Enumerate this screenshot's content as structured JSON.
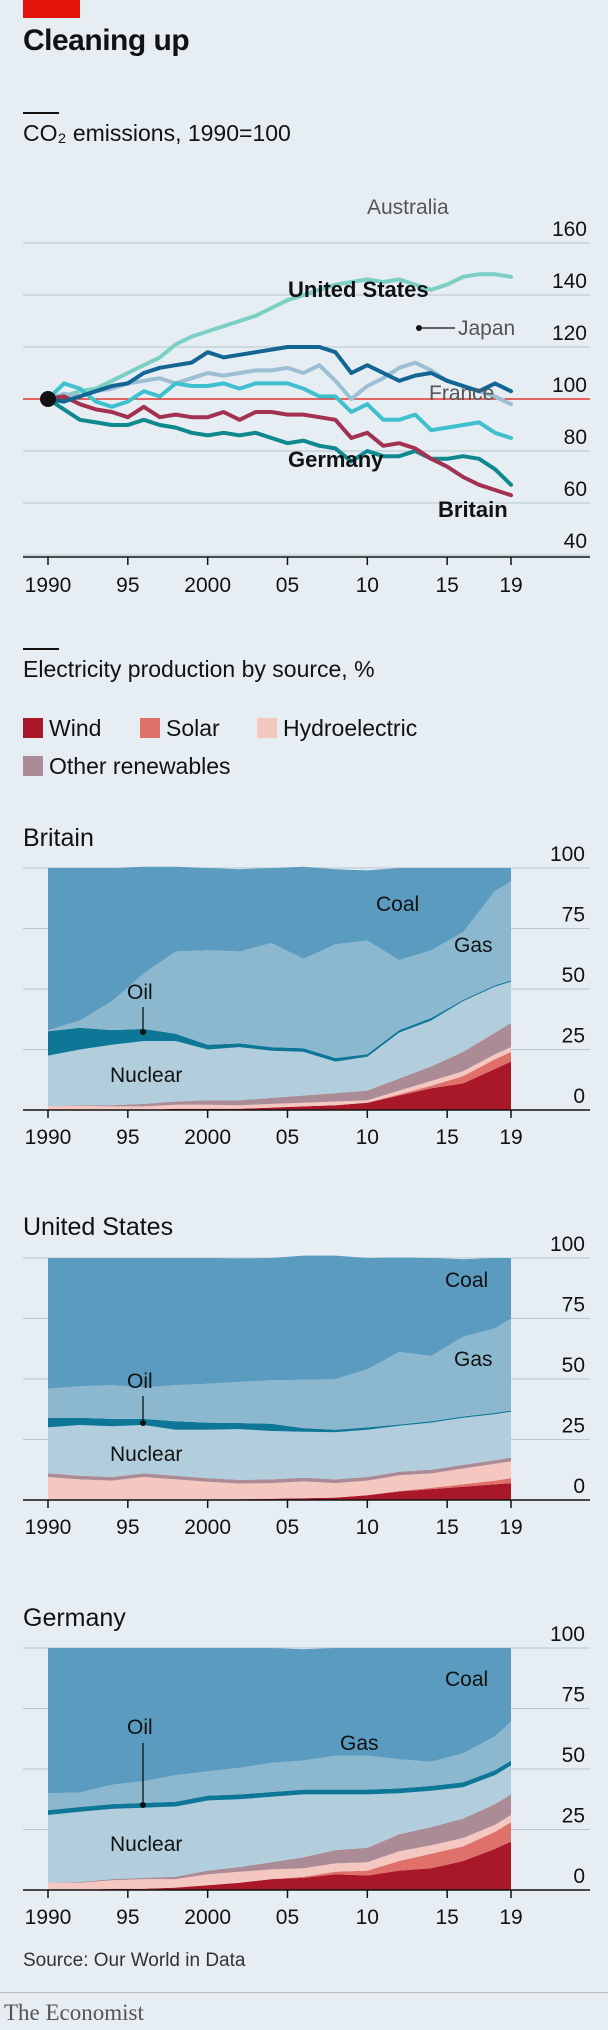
{
  "header": {
    "title": "Cleaning up"
  },
  "co2": {
    "title": "CO₂ emissions, 1990=100",
    "x_ticks": [
      "1990",
      "95",
      "2000",
      "05",
      "10",
      "15",
      "19"
    ],
    "y_ticks": [
      "40",
      "60",
      "80",
      "100",
      "120",
      "140",
      "160"
    ],
    "labels": {
      "australia": "Australia",
      "us": "United States",
      "japan": "Japan",
      "france": "France",
      "germany": "Germany",
      "britain": "Britain"
    }
  },
  "elec": {
    "title": "Electricity production by source, %",
    "legend": [
      {
        "label": "Wind",
        "color": "#a81829"
      },
      {
        "label": "Solar",
        "color": "#e0706a"
      },
      {
        "label": "Hydroelectric",
        "color": "#f4c7c1"
      },
      {
        "label": "Other renewables",
        "color": "#ab8b96"
      }
    ],
    "x_ticks": [
      "1990",
      "95",
      "2000",
      "05",
      "10",
      "15",
      "19"
    ],
    "y_ticks": [
      "0",
      "25",
      "50",
      "75",
      "100"
    ],
    "area_labels": {
      "coal": "Coal",
      "gas": "Gas",
      "oil": "Oil",
      "nuclear": "Nuclear"
    }
  },
  "chart_data": [
    {
      "type": "line",
      "title": "CO₂ emissions, 1990=100",
      "x": [
        1990,
        1991,
        1992,
        1993,
        1994,
        1995,
        1996,
        1997,
        1998,
        1999,
        2000,
        2001,
        2002,
        2003,
        2004,
        2005,
        2006,
        2007,
        2008,
        2009,
        2010,
        2011,
        2012,
        2013,
        2014,
        2015,
        2016,
        2017,
        2018,
        2019
      ],
      "ylim": [
        40,
        160
      ],
      "xlim": [
        1990,
        2019
      ],
      "colors": {
        "Australia": "#7ccfc4",
        "United States": "#136694",
        "Japan": "#9dbfd3",
        "France": "#3fc0cf",
        "Germany": "#10898e",
        "Britain": "#a23152"
      },
      "series": [
        {
          "name": "Australia",
          "values": [
            100,
            101,
            103,
            104,
            107,
            110,
            113,
            116,
            121,
            124,
            126,
            128,
            130,
            132,
            135,
            138,
            140,
            142,
            144,
            145,
            146,
            145,
            146,
            144,
            142,
            144,
            147,
            148,
            148,
            147
          ]
        },
        {
          "name": "United States",
          "values": [
            100,
            99,
            101,
            103,
            105,
            106,
            110,
            112,
            113,
            114,
            118,
            116,
            117,
            118,
            119,
            120,
            120,
            120,
            118,
            110,
            113,
            110,
            107,
            109,
            110,
            107,
            105,
            103,
            106,
            103
          ]
        },
        {
          "name": "Japan",
          "values": [
            100,
            102,
            101,
            103,
            104,
            106,
            107,
            108,
            106,
            108,
            110,
            109,
            110,
            111,
            111,
            112,
            110,
            113,
            107,
            100,
            105,
            108,
            112,
            114,
            111,
            107,
            105,
            103,
            101,
            98
          ]
        },
        {
          "name": "France",
          "values": [
            100,
            106,
            104,
            99,
            97,
            99,
            103,
            101,
            106,
            105,
            105,
            106,
            104,
            106,
            106,
            106,
            104,
            101,
            101,
            95,
            98,
            92,
            92,
            94,
            88,
            89,
            90,
            91,
            87,
            85
          ]
        },
        {
          "name": "Germany",
          "values": [
            100,
            96,
            92,
            91,
            90,
            90,
            92,
            90,
            89,
            87,
            86,
            87,
            86,
            87,
            85,
            83,
            84,
            82,
            81,
            76,
            80,
            78,
            78,
            80,
            77,
            77,
            78,
            77,
            73,
            67
          ]
        },
        {
          "name": "Britain",
          "values": [
            100,
            101,
            98,
            96,
            95,
            93,
            97,
            93,
            94,
            93,
            93,
            95,
            92,
            95,
            95,
            94,
            94,
            93,
            92,
            85,
            87,
            82,
            83,
            81,
            77,
            74,
            70,
            67,
            65,
            63
          ]
        }
      ]
    },
    {
      "type": "area",
      "title": "Britain",
      "x": [
        1990,
        1992,
        1994,
        1996,
        1998,
        2000,
        2002,
        2004,
        2006,
        2008,
        2010,
        2012,
        2014,
        2016,
        2018,
        2019
      ],
      "ylim": [
        0,
        100
      ],
      "series": [
        {
          "name": "Wind",
          "values": [
            0,
            0,
            0,
            0,
            0.5,
            0.5,
            0.5,
            1,
            1.5,
            2,
            3,
            6,
            9,
            11,
            17,
            20
          ]
        },
        {
          "name": "Solar",
          "values": [
            0,
            0,
            0,
            0,
            0,
            0,
            0,
            0,
            0,
            0,
            0,
            0.5,
            1,
            3,
            4,
            4
          ]
        },
        {
          "name": "Hydroelectric",
          "values": [
            1.5,
            1.7,
            1.5,
            1.5,
            1.7,
            1.7,
            1.5,
            1.5,
            1.5,
            1.5,
            1,
            1.5,
            2,
            2,
            2,
            2
          ]
        },
        {
          "name": "Other renewables",
          "values": [
            0,
            0.3,
            0.5,
            1,
            1.3,
            1.8,
            2,
            2.5,
            3,
            3.5,
            4,
            5,
            6,
            8,
            9,
            10
          ]
        },
        {
          "name": "Nuclear",
          "values": [
            21,
            23,
            25,
            26,
            25,
            21,
            22,
            19.5,
            18,
            13,
            14,
            19,
            19,
            21,
            19,
            17
          ]
        },
        {
          "name": "Oil",
          "values": [
            10,
            9,
            6,
            5,
            3,
            2,
            1.5,
            1.5,
            1.5,
            1.5,
            1,
            1,
            1,
            0.5,
            0.5,
            0.5
          ]
        },
        {
          "name": "Gas",
          "values": [
            0.5,
            3,
            12,
            23,
            34,
            39,
            38,
            43,
            37,
            47,
            47,
            29,
            28,
            28,
            39,
            41
          ]
        },
        {
          "name": "Coal",
          "values": [
            67,
            63,
            55,
            44,
            35,
            34,
            34,
            31,
            38,
            31,
            29,
            38,
            34,
            26.5,
            9.5,
            5.5
          ]
        }
      ]
    },
    {
      "type": "area",
      "title": "United States",
      "x": [
        1990,
        1992,
        1994,
        1996,
        1998,
        2000,
        2002,
        2004,
        2006,
        2008,
        2010,
        2012,
        2014,
        2016,
        2018,
        2019
      ],
      "ylim": [
        0,
        100
      ],
      "series": [
        {
          "name": "Wind",
          "values": [
            0,
            0,
            0,
            0,
            0,
            0,
            0.3,
            0.5,
            0.7,
            1,
            2,
            3.5,
            4.5,
            5.5,
            6.5,
            7
          ]
        },
        {
          "name": "Solar",
          "values": [
            0,
            0,
            0,
            0,
            0,
            0,
            0,
            0,
            0,
            0,
            0,
            0.2,
            0.5,
            1,
            1.5,
            2
          ]
        },
        {
          "name": "Hydroelectric",
          "values": [
            9.5,
            8.5,
            8,
            9.5,
            8.5,
            7.5,
            6.5,
            6.5,
            7,
            6,
            6,
            6.5,
            6,
            6.5,
            7,
            7
          ]
        },
        {
          "name": "Other renewables",
          "values": [
            1.5,
            1.5,
            1.5,
            1.5,
            1.5,
            1.5,
            1.5,
            1.5,
            1.5,
            1.5,
            1.5,
            1.5,
            1.5,
            1.5,
            1.5,
            1.5
          ]
        },
        {
          "name": "Nuclear",
          "values": [
            19,
            21,
            21,
            20,
            19,
            20,
            21,
            20,
            19,
            19.5,
            19.5,
            19,
            19.5,
            19.5,
            19,
            19
          ]
        },
        {
          "name": "Oil",
          "values": [
            4,
            3,
            3,
            2.5,
            3.5,
            3,
            2.5,
            3,
            1.5,
            1,
            1,
            0.5,
            0.5,
            0.5,
            0.5,
            0.5
          ]
        },
        {
          "name": "Gas",
          "values": [
            12,
            13,
            14,
            13,
            15,
            16,
            17,
            18,
            20,
            21,
            24,
            30,
            27,
            33,
            35,
            38
          ]
        },
        {
          "name": "Coal",
          "values": [
            54,
            53,
            52.5,
            53.5,
            52.5,
            52,
            51,
            50.5,
            51.3,
            51,
            46,
            39,
            40.5,
            32,
            29,
            25
          ]
        }
      ]
    },
    {
      "type": "area",
      "title": "Germany",
      "x": [
        1990,
        1992,
        1994,
        1996,
        1998,
        2000,
        2002,
        2004,
        2006,
        2008,
        2010,
        2012,
        2014,
        2016,
        2018,
        2019
      ],
      "ylim": [
        0,
        100
      ],
      "series": [
        {
          "name": "Wind",
          "values": [
            0,
            0,
            0.5,
            0.5,
            1,
            2,
            3,
            4.5,
            5,
            6.5,
            6,
            8,
            9,
            12,
            17,
            20
          ]
        },
        {
          "name": "Solar",
          "values": [
            0,
            0,
            0,
            0,
            0,
            0,
            0,
            0,
            0.5,
            1,
            2,
            4,
            6,
            6,
            7,
            8
          ]
        },
        {
          "name": "Hydroelectric",
          "values": [
            3,
            3,
            3.5,
            4,
            3.5,
            4.5,
            4.5,
            4,
            3.5,
            3.5,
            3.5,
            4,
            3.5,
            3.5,
            3,
            3
          ]
        },
        {
          "name": "Other renewables",
          "values": [
            0,
            0.3,
            0.5,
            0.5,
            1,
            1.5,
            2,
            3,
            4.5,
            5.5,
            6,
            7,
            7.5,
            8,
            8.5,
            8.5
          ]
        },
        {
          "name": "Nuclear",
          "values": [
            28,
            29,
            29,
            29,
            29,
            29,
            28,
            27,
            26,
            23,
            22,
            17,
            15,
            13,
            12,
            12
          ]
        },
        {
          "name": "Oil",
          "values": [
            2,
            2,
            2,
            2,
            2,
            2,
            2,
            2,
            2,
            2,
            2,
            2,
            2,
            2,
            2,
            2
          ]
        },
        {
          "name": "Gas",
          "values": [
            7,
            6,
            8,
            9,
            11,
            10,
            11,
            12,
            12,
            14,
            14,
            12,
            10,
            12,
            14,
            16
          ]
        },
        {
          "name": "Coal",
          "values": [
            60,
            59.7,
            56.5,
            55,
            52.5,
            51,
            49.5,
            47.5,
            46,
            44.5,
            44.5,
            46,
            47,
            43.5,
            36.5,
            30.5
          ]
        }
      ]
    }
  ]
}
